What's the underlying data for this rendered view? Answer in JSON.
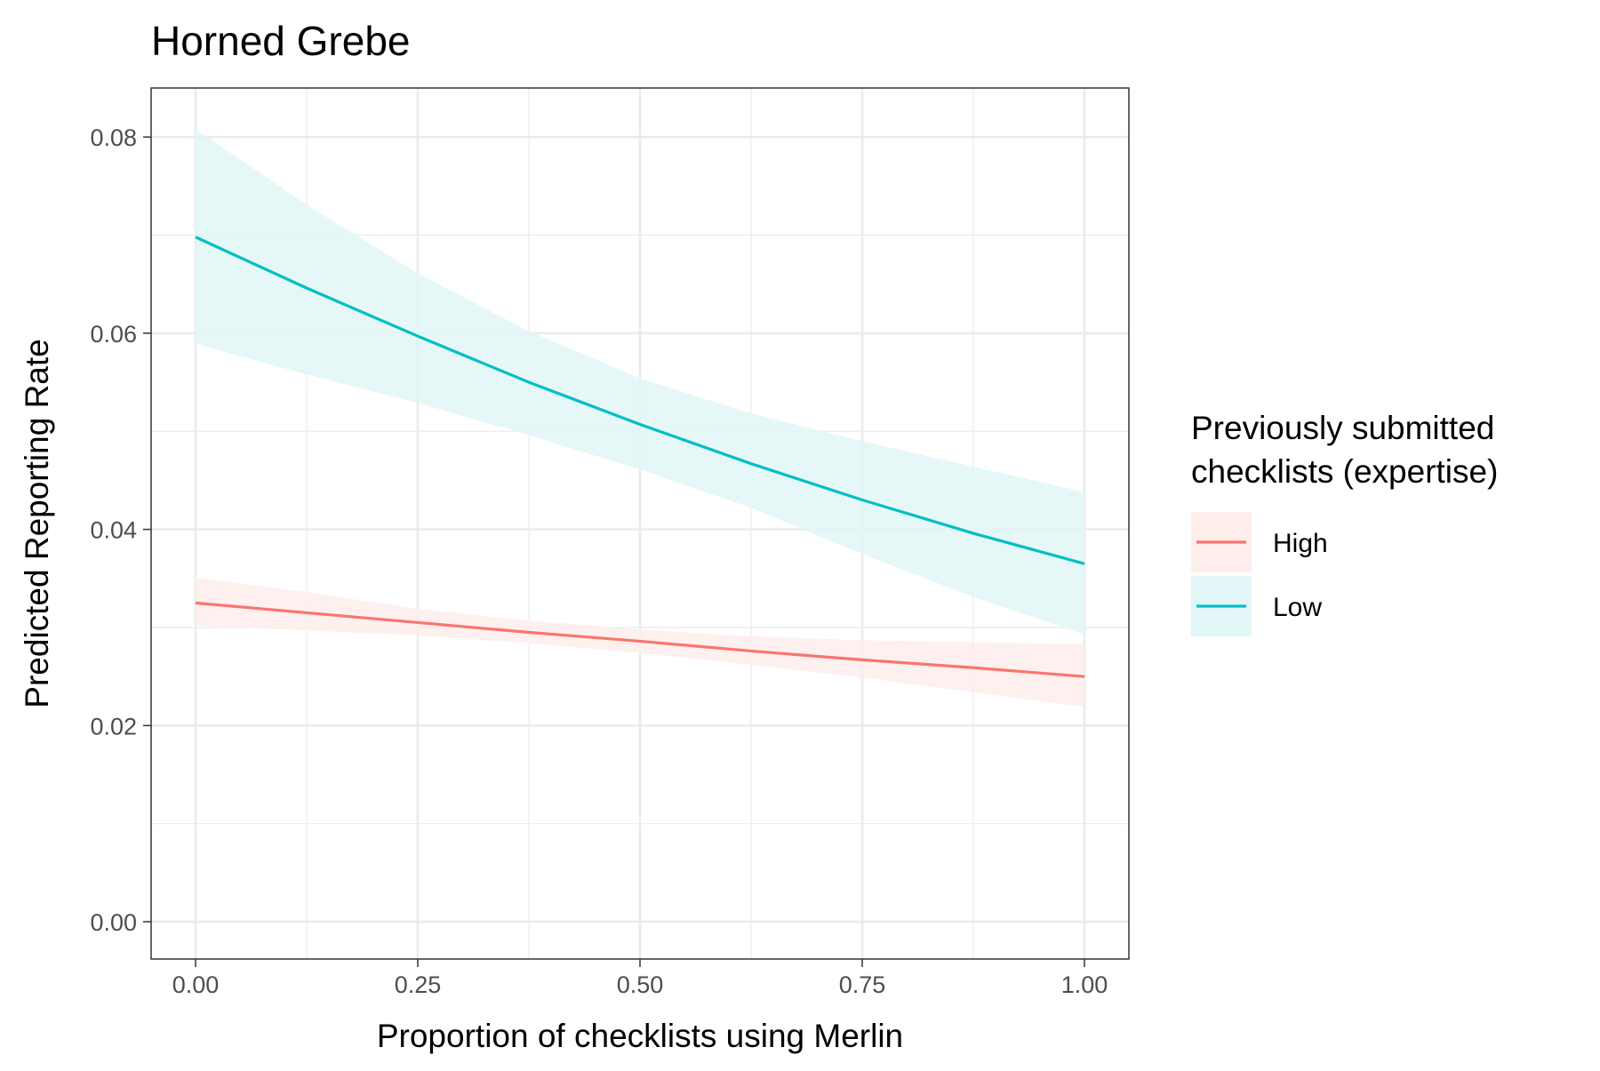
{
  "chart_data": {
    "type": "line",
    "title": "Horned Grebe",
    "xlabel": "Proportion of checklists using Merlin",
    "ylabel": "Predicted Reporting Rate",
    "xlim": [
      -0.05,
      1.05
    ],
    "ylim": [
      -0.0038,
      0.085
    ],
    "x_ticks": [
      0,
      0.25,
      0.5,
      0.75,
      1
    ],
    "x_tick_labels": [
      "0.00",
      "0.25",
      "0.50",
      "0.75",
      "1.00"
    ],
    "y_ticks": [
      0,
      0.02,
      0.04,
      0.06,
      0.08
    ],
    "y_tick_labels": [
      "0.00",
      "0.02",
      "0.04",
      "0.06",
      "0.08"
    ],
    "grid": true,
    "legend": {
      "title_lines": [
        "Previously submitted",
        "checklists (expertise)"
      ],
      "position": "right"
    },
    "x": [
      0,
      0.125,
      0.25,
      0.375,
      0.5,
      0.625,
      0.75,
      0.875,
      1
    ],
    "series": [
      {
        "name": "High",
        "color": "#F8766D",
        "fill": "#FDEDEB",
        "values": [
          0.0325,
          0.0315,
          0.0305,
          0.0295,
          0.0286,
          0.0276,
          0.0267,
          0.0259,
          0.025
        ],
        "lower": [
          0.0302,
          0.0297,
          0.0292,
          0.0284,
          0.0274,
          0.0262,
          0.0249,
          0.0234,
          0.0219
        ],
        "upper": [
          0.0351,
          0.0336,
          0.0319,
          0.0307,
          0.0298,
          0.0291,
          0.0287,
          0.0285,
          0.0283
        ]
      },
      {
        "name": "Low",
        "color": "#00BFC4",
        "fill": "#E2F6F7",
        "values": [
          0.0698,
          0.0646,
          0.0597,
          0.055,
          0.0507,
          0.0467,
          0.043,
          0.0396,
          0.0365
        ],
        "lower": [
          0.0589,
          0.0558,
          0.0529,
          0.0496,
          0.0461,
          0.0422,
          0.0375,
          0.0331,
          0.0293
        ],
        "upper": [
          0.0808,
          0.0731,
          0.0661,
          0.0602,
          0.0554,
          0.0518,
          0.049,
          0.0464,
          0.0438
        ]
      }
    ]
  }
}
